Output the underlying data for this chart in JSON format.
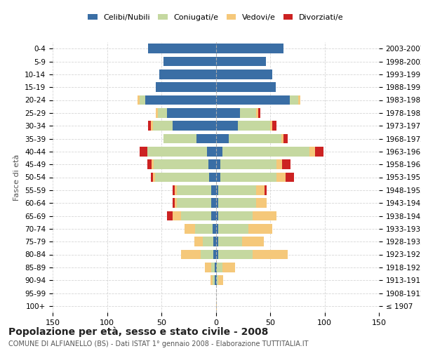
{
  "age_groups": [
    "100+",
    "95-99",
    "90-94",
    "85-89",
    "80-84",
    "75-79",
    "70-74",
    "65-69",
    "60-64",
    "55-59",
    "50-54",
    "45-49",
    "40-44",
    "35-39",
    "30-34",
    "25-29",
    "20-24",
    "15-19",
    "10-14",
    "5-9",
    "0-4"
  ],
  "birth_years": [
    "≤ 1907",
    "1908-1912",
    "1913-1917",
    "1918-1922",
    "1923-1927",
    "1928-1932",
    "1933-1937",
    "1938-1942",
    "1943-1947",
    "1948-1952",
    "1953-1957",
    "1958-1962",
    "1963-1967",
    "1968-1972",
    "1973-1977",
    "1978-1982",
    "1983-1987",
    "1988-1992",
    "1993-1997",
    "1998-2002",
    "2003-2007"
  ],
  "male_celibi": [
    0,
    0,
    1,
    1,
    2,
    2,
    3,
    4,
    4,
    4,
    6,
    7,
    8,
    18,
    40,
    45,
    65,
    55,
    52,
    48,
    62
  ],
  "male_coniugati": [
    0,
    0,
    2,
    3,
    12,
    10,
    16,
    28,
    32,
    32,
    50,
    50,
    55,
    30,
    18,
    8,
    5,
    0,
    0,
    0,
    0
  ],
  "male_vedovi": [
    0,
    0,
    2,
    6,
    18,
    8,
    10,
    8,
    2,
    2,
    2,
    2,
    0,
    0,
    2,
    2,
    2,
    0,
    0,
    0,
    0
  ],
  "male_divorziati": [
    0,
    0,
    0,
    0,
    0,
    0,
    0,
    5,
    2,
    2,
    2,
    4,
    7,
    0,
    2,
    0,
    0,
    0,
    0,
    0,
    0
  ],
  "female_celibi": [
    0,
    0,
    1,
    1,
    2,
    2,
    2,
    2,
    2,
    2,
    4,
    4,
    6,
    12,
    20,
    22,
    68,
    55,
    52,
    46,
    62
  ],
  "female_coniugati": [
    0,
    0,
    1,
    5,
    32,
    22,
    28,
    32,
    35,
    35,
    52,
    52,
    80,
    48,
    30,
    15,
    8,
    0,
    0,
    0,
    0
  ],
  "female_vedovi": [
    1,
    0,
    5,
    12,
    32,
    20,
    22,
    22,
    10,
    8,
    8,
    5,
    5,
    2,
    2,
    2,
    2,
    0,
    0,
    0,
    0
  ],
  "female_divorziati": [
    0,
    0,
    0,
    0,
    0,
    0,
    0,
    0,
    0,
    2,
    8,
    8,
    8,
    4,
    4,
    2,
    0,
    0,
    0,
    0,
    0
  ],
  "colors": {
    "celibi": "#3a6ea5",
    "coniugati": "#c5d8a0",
    "vedovi": "#f5c87a",
    "divorziati": "#cc2222"
  },
  "xlim": 150,
  "title": "Popolazione per età, sesso e stato civile - 2008",
  "subtitle": "COMUNE DI ALFIANELLO (BS) - Dati ISTAT 1° gennaio 2008 - Elaborazione TUTTITALIA.IT",
  "ylabel_left": "Fasce di età",
  "legend_labels": [
    "Celibi/Nubili",
    "Coniugati/e",
    "Vedovi/e",
    "Divorziati/e"
  ],
  "bg_color": "#ffffff",
  "grid_color": "#cccccc"
}
